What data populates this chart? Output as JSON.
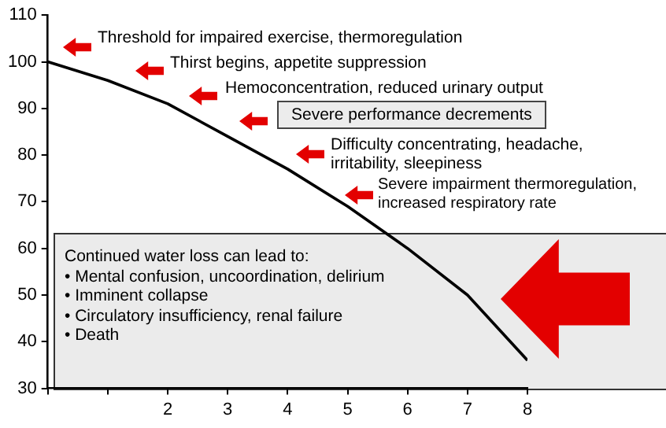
{
  "chart_data": {
    "type": "line",
    "x": [
      0,
      1,
      2,
      3,
      4,
      5,
      6,
      7,
      8
    ],
    "series": [
      {
        "color": "#000000",
        "values": [
          100,
          96,
          91,
          84,
          77,
          69,
          60,
          50,
          36
        ]
      }
    ],
    "xlim": [
      0,
      8
    ],
    "xticks": [
      {
        "value": 0,
        "label": null
      },
      {
        "value": 1,
        "label": null
      },
      2,
      3,
      4,
      5,
      6,
      7,
      8
    ],
    "ylim": [
      30,
      110
    ],
    "yticks": [
      30,
      40,
      50,
      60,
      70,
      80,
      90,
      100,
      110
    ],
    "grid": false,
    "legend": false,
    "marker": "none",
    "line_style": "solid",
    "annotations": [
      "Threshold for impaired exercise, thermoregulation",
      "Thirst begins, appetite suppression",
      "Hemoconcentration, reduced urinary output",
      "Severe performance decrements",
      "Difficulty concentrating, headache,\nirritability, sleepiness",
      "Severe impairment thermoregulation,\nincreased respiratory rate",
      "Continued water loss can lead to:\n• Mental confusion, uncoordination, delirium\n• Imminent collapse\n• Circulatory insufficiency, renal failure\n• Death"
    ]
  }
}
